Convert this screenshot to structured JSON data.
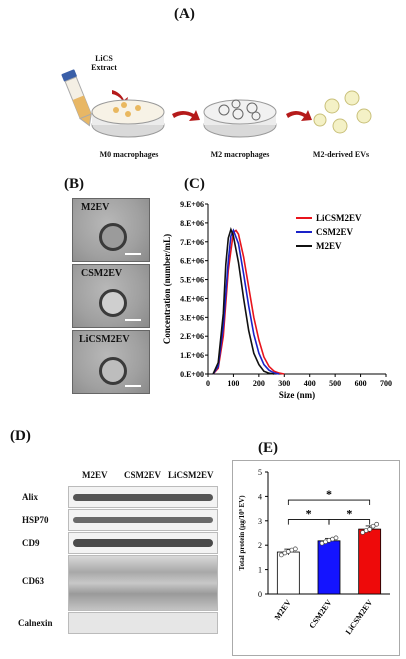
{
  "panelA": {
    "label": "(A)",
    "tube_label": "LiCS\nExtract",
    "steps": [
      "M0 macrophages",
      "M2 macrophages",
      "M2-derived EVs"
    ]
  },
  "panelB": {
    "label": "(B)",
    "images": [
      "M2EV",
      "CSM2EV",
      "LiCSM2EV"
    ]
  },
  "panelC": {
    "label": "(C)",
    "chart_data": {
      "type": "line",
      "xlabel": "Size (nm)",
      "ylabel": "Concentration (number/mL)",
      "xlim": [
        0,
        700
      ],
      "ylim": [
        0,
        9000000
      ],
      "xticks": [
        "0",
        "100",
        "200",
        "300",
        "400",
        "500",
        "600",
        "700"
      ],
      "yticks": [
        "0.E+00",
        "1.E+06",
        "2.E+06",
        "3.E+06",
        "4.E+06",
        "5.E+06",
        "6.E+06",
        "7.E+06",
        "8.E+06",
        "9.E+06"
      ],
      "legend": "top-right",
      "series": [
        {
          "name": "LiCSM2EV",
          "color": "#e8141c",
          "x": [
            20,
            40,
            60,
            80,
            100,
            110,
            120,
            140,
            160,
            180,
            200,
            220,
            240,
            260,
            280,
            300
          ],
          "y": [
            0,
            300000,
            2000000,
            5500000,
            7500000,
            7600000,
            7400000,
            6200000,
            4600000,
            3000000,
            1800000,
            900000,
            400000,
            150000,
            50000,
            0
          ]
        },
        {
          "name": "CSM2EV",
          "color": "#1a22c8",
          "x": [
            20,
            40,
            60,
            80,
            90,
            100,
            120,
            140,
            160,
            180,
            200,
            220,
            240,
            260,
            280
          ],
          "y": [
            0,
            400000,
            2500000,
            6000000,
            7300000,
            7600000,
            6900000,
            5300000,
            3600000,
            2100000,
            1100000,
            500000,
            200000,
            60000,
            0
          ]
        },
        {
          "name": "M2EV",
          "color": "#111111",
          "x": [
            20,
            40,
            60,
            70,
            80,
            90,
            100,
            120,
            140,
            160,
            180,
            200,
            220,
            240,
            260
          ],
          "y": [
            0,
            600000,
            3200000,
            5800000,
            7200000,
            7650000,
            7300000,
            5900000,
            4000000,
            2300000,
            1100000,
            500000,
            150000,
            40000,
            0
          ]
        }
      ]
    }
  },
  "panelD": {
    "label": "(D)",
    "columns": [
      "M2EV",
      "CSM2EV",
      "LiCSM2EV"
    ],
    "rows": [
      "Alix",
      "HSP70",
      "CD9",
      "CD63",
      "Calnexin"
    ]
  },
  "panelE": {
    "label": "(E)",
    "chart_data": {
      "type": "bar",
      "ylabel": "Total protein (μg/10⁹ EV)",
      "ylim": [
        0,
        5
      ],
      "yticks": [
        "0",
        "1",
        "2",
        "3",
        "4",
        "5"
      ],
      "categories": [
        "M2EV",
        "CSM2EV",
        "LiCSM2EV"
      ],
      "values": [
        1.72,
        2.18,
        2.66
      ],
      "errors": [
        0.12,
        0.1,
        0.13
      ],
      "colors": [
        "#ffffff",
        "#1414ff",
        "#ee0a0a"
      ],
      "points": [
        [
          1.6,
          1.68,
          1.74,
          1.8,
          1.85
        ],
        [
          2.08,
          2.14,
          2.2,
          2.25,
          2.3
        ],
        [
          2.52,
          2.6,
          2.65,
          2.78,
          2.86
        ]
      ],
      "significance": [
        "*",
        "*",
        "*"
      ]
    }
  }
}
